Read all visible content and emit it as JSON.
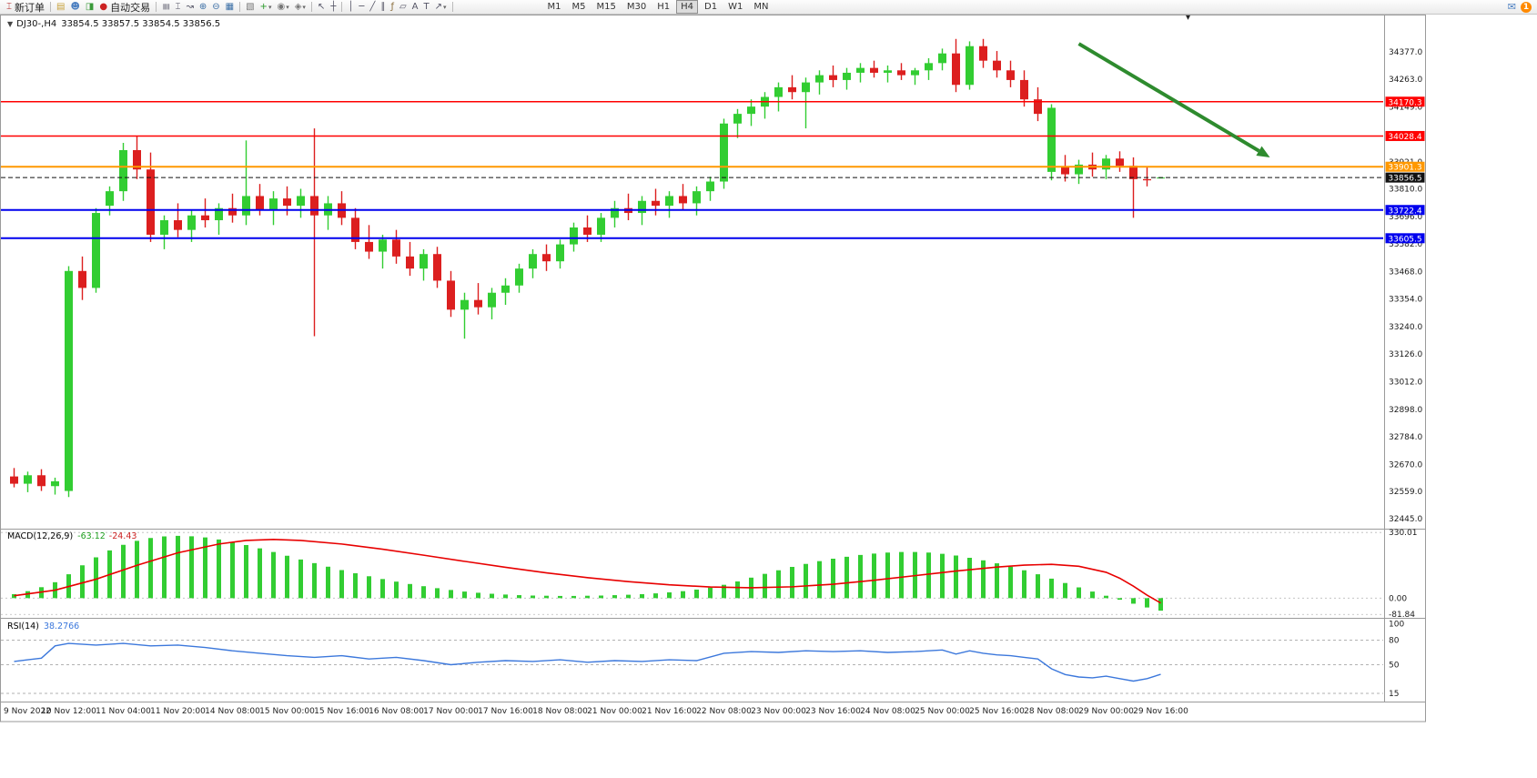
{
  "toolbar": {
    "new_order_label": "新订单",
    "auto_trading_label": "自动交易",
    "timeframes": [
      "M1",
      "M5",
      "M15",
      "M30",
      "H1",
      "H4",
      "D1",
      "W1",
      "MN"
    ],
    "active_timeframe": "H4",
    "notification_badge": "1",
    "items": [
      {
        "name": "new-order-button",
        "icon": "new-order-icon",
        "glyph": "⌶",
        "color": "#b22222",
        "label": "新订单"
      },
      {
        "sep": true
      },
      {
        "name": "charts-window-button",
        "icon": "chart-window-icon",
        "glyph": "▤",
        "color": "#c8a23c"
      },
      {
        "name": "profiles-button",
        "icon": "profiles-icon",
        "glyph": "☻",
        "color": "#4a7ec0"
      },
      {
        "name": "market-watch-button",
        "icon": "market-watch-icon",
        "glyph": "◨",
        "color": "#3a9a3a"
      },
      {
        "name": "auto-trading-button",
        "icon": "auto-trading-icon",
        "glyph": "●",
        "color": "#cc2222",
        "label": "自动交易"
      },
      {
        "sep": true
      },
      {
        "name": "bar-chart-button",
        "icon": "bar-chart-icon",
        "glyph": "≣",
        "rot": true
      },
      {
        "name": "candle-chart-button",
        "icon": "candlestick-chart-icon",
        "glyph": "⌶"
      },
      {
        "name": "line-chart-button",
        "icon": "line-chart-icon",
        "glyph": "↝"
      },
      {
        "name": "zoom-in-button",
        "icon": "zoom-in-icon",
        "glyph": "⊕",
        "color": "#3a6ea5"
      },
      {
        "name": "zoom-out-button",
        "icon": "zoom-out-icon",
        "glyph": "⊖",
        "color": "#3a6ea5"
      },
      {
        "name": "tile-windows-button",
        "icon": "tile-windows-icon",
        "glyph": "▦",
        "color": "#3a6ea5"
      },
      {
        "sep": true
      },
      {
        "name": "auto-arrange-button",
        "icon": "auto-arrange-icon",
        "glyph": "▧",
        "color": "#777777"
      },
      {
        "name": "indicators-button",
        "icon": "indicators-icon",
        "glyph": "+",
        "color": "#2a9a2a",
        "caret": true
      },
      {
        "name": "periods-button",
        "icon": "period-icon",
        "glyph": "◉",
        "color": "#777777",
        "caret": true
      },
      {
        "name": "templates-button",
        "icon": "template-icon",
        "glyph": "◈",
        "color": "#777777",
        "caret": true
      },
      {
        "sep": true
      },
      {
        "name": "cursor-button",
        "icon": "cursor-icon",
        "glyph": "↖"
      },
      {
        "name": "crosshair-button",
        "icon": "crosshair-icon",
        "glyph": "┼"
      },
      {
        "sep": true
      },
      {
        "name": "vline-button",
        "icon": "vertical-line-icon",
        "glyph": "│"
      },
      {
        "name": "hline-button",
        "icon": "horizontal-line-icon",
        "glyph": "─"
      },
      {
        "name": "trendline-button",
        "icon": "trendline-icon",
        "glyph": "╱"
      },
      {
        "name": "channel-button",
        "icon": "channel-icon",
        "glyph": "∥"
      },
      {
        "name": "fibo-button",
        "icon": "fibonacci-icon",
        "glyph": "ƒ",
        "color": "#8a6d3b"
      },
      {
        "name": "shapes-button",
        "icon": "shapes-icon",
        "glyph": "▱"
      },
      {
        "name": "text-button",
        "icon": "text-icon",
        "glyph": "A"
      },
      {
        "name": "label-button",
        "icon": "text-label-icon",
        "glyph": "T"
      },
      {
        "name": "arrows-button",
        "icon": "arrow-tool-icon",
        "glyph": "↗",
        "caret": true
      },
      {
        "sep": true
      }
    ]
  },
  "ui": {
    "one_click_glyph": "▼",
    "shift_marker_glyph": "▾",
    "mail_glyph": "✉",
    "caret_glyph": "▾"
  },
  "chart": {
    "title": "DJ30-,H4",
    "ohlc_text": "33854.5 33857.5 33854.5 33856.5"
  },
  "chart_data": [
    {
      "type": "candlestick",
      "title": "DJ30-,H4",
      "ylim": [
        32404,
        34527
      ],
      "colors": {
        "bull": "#32CD32",
        "bear": "#DC1F1F"
      },
      "y_ticks": [
        "34377.0",
        "34263.0",
        "34149.0",
        "34035.0",
        "33921.0",
        "33810.0",
        "33696.0",
        "33582.0",
        "33468.0",
        "33354.0",
        "33240.0",
        "33126.0",
        "33012.0",
        "32898.0",
        "32784.0",
        "32670.0",
        "32559.0",
        "32445.0"
      ],
      "x_labels": [
        "9 Nov 2022",
        "10 Nov 12:00",
        "11 Nov 04:00",
        "11 Nov 20:00",
        "14 Nov 08:00",
        "15 Nov 00:00",
        "15 Nov 16:00",
        "16 Nov 08:00",
        "17 Nov 00:00",
        "17 Nov 16:00",
        "18 Nov 08:00",
        "21 Nov 00:00",
        "21 Nov 16:00",
        "22 Nov 08:00",
        "23 Nov 00:00",
        "23 Nov 16:00",
        "24 Nov 08:00",
        "25 Nov 00:00",
        "25 Nov 16:00",
        "28 Nov 08:00",
        "29 Nov 00:00",
        "29 Nov 16:00"
      ],
      "hlines": [
        {
          "price": 34170.3,
          "label": "34170.3",
          "color": "#FF0000",
          "width": 1.5
        },
        {
          "price": 34028.4,
          "label": "34028.4",
          "color": "#FF0000",
          "width": 1.5
        },
        {
          "price": 33901.3,
          "label": "33901.3",
          "color": "#FF9800",
          "width": 2
        },
        {
          "price": 33856.5,
          "label": "33856.5",
          "color": "#111111",
          "width": 1,
          "dash": true
        },
        {
          "price": 33722.4,
          "label": "33722.4",
          "color": "#0000EE",
          "width": 2
        },
        {
          "price": 33605.5,
          "label": "33605.5",
          "color": "#0000EE",
          "width": 2
        }
      ],
      "arrow": {
        "from_bar": 78,
        "from_price": 34410,
        "to_bar": 92,
        "to_price": 33940,
        "color": "#2E8B2E"
      },
      "candles": [
        [
          32620,
          32655,
          32575,
          32590
        ],
        [
          32590,
          32640,
          32555,
          32625
        ],
        [
          32625,
          32650,
          32560,
          32580
        ],
        [
          32580,
          32615,
          32545,
          32600
        ],
        [
          32560,
          33490,
          32535,
          33470
        ],
        [
          33470,
          33530,
          33350,
          33400
        ],
        [
          33400,
          33730,
          33380,
          33710
        ],
        [
          33740,
          33820,
          33700,
          33800
        ],
        [
          33800,
          34000,
          33760,
          33970
        ],
        [
          33970,
          34030,
          33850,
          33890
        ],
        [
          33890,
          33960,
          33590,
          33620
        ],
        [
          33620,
          33700,
          33560,
          33680
        ],
        [
          33680,
          33750,
          33610,
          33640
        ],
        [
          33640,
          33720,
          33590,
          33700
        ],
        [
          33700,
          33770,
          33650,
          33680
        ],
        [
          33680,
          33750,
          33620,
          33730
        ],
        [
          33730,
          33790,
          33670,
          33700
        ],
        [
          33700,
          34010,
          33660,
          33780
        ],
        [
          33780,
          33830,
          33700,
          33720
        ],
        [
          33720,
          33800,
          33660,
          33770
        ],
        [
          33770,
          33820,
          33700,
          33740
        ],
        [
          33740,
          33810,
          33690,
          33780
        ],
        [
          33780,
          34060,
          33200,
          33700
        ],
        [
          33700,
          33780,
          33640,
          33750
        ],
        [
          33750,
          33800,
          33660,
          33690
        ],
        [
          33690,
          33730,
          33560,
          33590
        ],
        [
          33590,
          33660,
          33520,
          33550
        ],
        [
          33550,
          33620,
          33480,
          33600
        ],
        [
          33600,
          33640,
          33500,
          33530
        ],
        [
          33530,
          33590,
          33450,
          33480
        ],
        [
          33480,
          33560,
          33430,
          33540
        ],
        [
          33540,
          33570,
          33400,
          33430
        ],
        [
          33430,
          33470,
          33280,
          33310
        ],
        [
          33310,
          33380,
          33190,
          33350
        ],
        [
          33350,
          33420,
          33290,
          33320
        ],
        [
          33320,
          33400,
          33270,
          33380
        ],
        [
          33380,
          33440,
          33330,
          33410
        ],
        [
          33410,
          33500,
          33380,
          33480
        ],
        [
          33480,
          33560,
          33440,
          33540
        ],
        [
          33540,
          33580,
          33470,
          33510
        ],
        [
          33510,
          33600,
          33480,
          33580
        ],
        [
          33580,
          33670,
          33550,
          33650
        ],
        [
          33650,
          33700,
          33590,
          33620
        ],
        [
          33620,
          33710,
          33590,
          33690
        ],
        [
          33690,
          33760,
          33650,
          33730
        ],
        [
          33730,
          33790,
          33680,
          33710
        ],
        [
          33710,
          33780,
          33660,
          33760
        ],
        [
          33760,
          33810,
          33700,
          33740
        ],
        [
          33740,
          33800,
          33690,
          33780
        ],
        [
          33780,
          33830,
          33720,
          33750
        ],
        [
          33750,
          33820,
          33700,
          33800
        ],
        [
          33800,
          33860,
          33760,
          33840
        ],
        [
          33840,
          34100,
          33810,
          34080
        ],
        [
          34080,
          34140,
          34020,
          34120
        ],
        [
          34120,
          34180,
          34070,
          34150
        ],
        [
          34150,
          34210,
          34100,
          34190
        ],
        [
          34190,
          34250,
          34130,
          34230
        ],
        [
          34230,
          34280,
          34180,
          34210
        ],
        [
          34210,
          34270,
          34060,
          34250
        ],
        [
          34250,
          34300,
          34200,
          34280
        ],
        [
          34280,
          34320,
          34230,
          34260
        ],
        [
          34260,
          34310,
          34220,
          34290
        ],
        [
          34290,
          34330,
          34250,
          34310
        ],
        [
          34310,
          34340,
          34270,
          34290
        ],
        [
          34290,
          34320,
          34250,
          34300
        ],
        [
          34300,
          34330,
          34260,
          34280
        ],
        [
          34280,
          34310,
          34240,
          34300
        ],
        [
          34300,
          34350,
          34260,
          34330
        ],
        [
          34330,
          34390,
          34300,
          34370
        ],
        [
          34370,
          34430,
          34210,
          34240
        ],
        [
          34240,
          34420,
          34220,
          34400
        ],
        [
          34400,
          34430,
          34310,
          34340
        ],
        [
          34340,
          34380,
          34270,
          34300
        ],
        [
          34300,
          34340,
          34230,
          34260
        ],
        [
          34260,
          34300,
          34150,
          34180
        ],
        [
          34180,
          34230,
          34090,
          34120
        ],
        [
          33880,
          34160,
          33845,
          34145
        ],
        [
          33900,
          33950,
          33840,
          33870
        ],
        [
          33870,
          33930,
          33830,
          33910
        ],
        [
          33910,
          33960,
          33860,
          33890
        ],
        [
          33890,
          33950,
          33850,
          33935
        ],
        [
          33935,
          33965,
          33880,
          33905
        ],
        [
          33905,
          33940,
          33690,
          33850
        ],
        [
          33850,
          33900,
          33820,
          33845
        ],
        [
          33854.5,
          33857.5,
          33854.5,
          33856.5
        ]
      ]
    },
    {
      "type": "bar",
      "title": "MACD(12,26,9)",
      "main_value": "-63.12",
      "signal_value": "-24.43",
      "ylim": [
        -90,
        340
      ],
      "y_ticks": [
        "330.01",
        "0.00",
        "-81.84"
      ],
      "colors": {
        "histogram": "#32CD32",
        "signal": "#E80000"
      },
      "histogram": [
        20,
        35,
        55,
        80,
        120,
        165,
        205,
        240,
        268,
        288,
        302,
        310,
        313,
        311,
        305,
        295,
        282,
        267,
        250,
        232,
        213,
        194,
        176,
        158,
        141,
        125,
        110,
        96,
        83,
        71,
        60,
        50,
        41,
        33,
        27,
        22,
        18,
        15,
        13,
        12,
        11,
        11,
        12,
        13,
        15,
        17,
        20,
        24,
        29,
        35,
        43,
        53,
        67,
        84,
        103,
        122,
        140,
        157,
        172,
        186,
        198,
        208,
        217,
        224,
        229,
        232,
        232,
        229,
        223,
        214,
        203,
        190,
        175,
        158,
        140,
        120,
        98,
        76,
        54,
        33,
        12,
        -8,
        -28,
        -47,
        -63.12
      ],
      "signal_points": [
        [
          0,
          12
        ],
        [
          3,
          40
        ],
        [
          6,
          95
        ],
        [
          9,
          165
        ],
        [
          12,
          228
        ],
        [
          15,
          272
        ],
        [
          17,
          290
        ],
        [
          19,
          295
        ],
        [
          21,
          290
        ],
        [
          24,
          272
        ],
        [
          27,
          246
        ],
        [
          30,
          216
        ],
        [
          33,
          185
        ],
        [
          36,
          155
        ],
        [
          39,
          127
        ],
        [
          42,
          103
        ],
        [
          45,
          83
        ],
        [
          48,
          67
        ],
        [
          51,
          56
        ],
        [
          54,
          52
        ],
        [
          57,
          57
        ],
        [
          60,
          70
        ],
        [
          63,
          90
        ],
        [
          66,
          113
        ],
        [
          69,
          136
        ],
        [
          72,
          156
        ],
        [
          74,
          166
        ],
        [
          76,
          170
        ],
        [
          78,
          160
        ],
        [
          80,
          130
        ],
        [
          81,
          100
        ],
        [
          82,
          60
        ],
        [
          83,
          15
        ],
        [
          84,
          -24.43
        ]
      ]
    },
    {
      "type": "line",
      "title": "RSI(14)",
      "value": "38.2766",
      "ylim": [
        5,
        105
      ],
      "y_ticks": [
        "100",
        "80",
        "50",
        "15"
      ],
      "color": "#3C78DC",
      "points": [
        [
          0,
          54
        ],
        [
          1,
          56
        ],
        [
          2,
          58
        ],
        [
          3,
          73
        ],
        [
          4,
          76
        ],
        [
          6,
          74
        ],
        [
          8,
          76
        ],
        [
          10,
          73
        ],
        [
          12,
          74
        ],
        [
          14,
          71
        ],
        [
          16,
          67
        ],
        [
          18,
          64
        ],
        [
          20,
          61
        ],
        [
          22,
          59
        ],
        [
          24,
          61
        ],
        [
          26,
          57
        ],
        [
          28,
          59
        ],
        [
          30,
          55
        ],
        [
          32,
          50
        ],
        [
          34,
          53
        ],
        [
          36,
          55
        ],
        [
          38,
          54
        ],
        [
          40,
          56
        ],
        [
          42,
          53
        ],
        [
          44,
          55
        ],
        [
          46,
          54
        ],
        [
          48,
          56
        ],
        [
          50,
          55
        ],
        [
          52,
          64
        ],
        [
          54,
          66
        ],
        [
          56,
          65
        ],
        [
          58,
          67
        ],
        [
          60,
          66
        ],
        [
          62,
          67
        ],
        [
          64,
          65
        ],
        [
          66,
          66
        ],
        [
          68,
          68
        ],
        [
          69,
          63
        ],
        [
          70,
          67
        ],
        [
          71,
          64
        ],
        [
          72,
          62
        ],
        [
          73,
          61
        ],
        [
          74,
          59
        ],
        [
          75,
          57
        ],
        [
          76,
          45
        ],
        [
          77,
          38
        ],
        [
          78,
          35
        ],
        [
          79,
          34
        ],
        [
          80,
          36
        ],
        [
          81,
          33
        ],
        [
          82,
          30
        ],
        [
          83,
          33
        ],
        [
          84,
          38.2766
        ]
      ]
    }
  ]
}
